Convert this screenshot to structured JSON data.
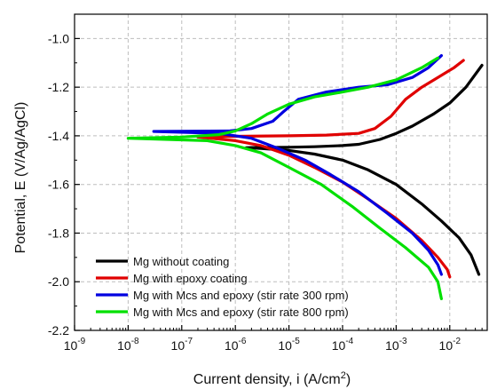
{
  "chart_data": {
    "type": "line",
    "title": "",
    "xlabel": "Current density, i (A/cm",
    "xlabel_sup": "2",
    "xlabel_suffix": ")",
    "ylabel": "Potential, E (V/Ag/AgCl)",
    "xscale": "log",
    "xlim": [
      1e-09,
      0.05
    ],
    "ylim": [
      -2.2,
      -0.9
    ],
    "x_ticks": [
      {
        "value": 1e-09,
        "base": "10",
        "exp": "-9"
      },
      {
        "value": 1e-08,
        "base": "10",
        "exp": "-8"
      },
      {
        "value": 1e-07,
        "base": "10",
        "exp": "-7"
      },
      {
        "value": 1e-06,
        "base": "10",
        "exp": "-6"
      },
      {
        "value": 1e-05,
        "base": "10",
        "exp": "-5"
      },
      {
        "value": 0.0001,
        "base": "10",
        "exp": "-4"
      },
      {
        "value": 0.001,
        "base": "10",
        "exp": "-3"
      },
      {
        "value": 0.01,
        "base": "10",
        "exp": "-2"
      }
    ],
    "y_ticks": [
      {
        "value": -1.0,
        "label": "-1.0"
      },
      {
        "value": -1.2,
        "label": "-1.2"
      },
      {
        "value": -1.4,
        "label": "-1.4"
      },
      {
        "value": -1.6,
        "label": "-1.6"
      },
      {
        "value": -1.8,
        "label": "-1.8"
      },
      {
        "value": -2.0,
        "label": "-2.0"
      },
      {
        "value": -2.2,
        "label": "-2.2"
      }
    ],
    "grid": true,
    "legend_position": "bottom-left",
    "series": [
      {
        "name": "Mg without coating",
        "color": "#000000",
        "points": [
          [
            0.04,
            -1.11
          ],
          [
            0.02,
            -1.2
          ],
          [
            0.01,
            -1.265
          ],
          [
            0.005,
            -1.31
          ],
          [
            0.002,
            -1.36
          ],
          [
            0.001,
            -1.39
          ],
          [
            0.0005,
            -1.415
          ],
          [
            0.0002,
            -1.435
          ],
          [
            0.0001,
            -1.44
          ],
          [
            3e-05,
            -1.445
          ],
          [
            1e-05,
            -1.447
          ],
          [
            2e-06,
            -1.448
          ],
          [
            1.6e-06,
            -1.449
          ],
          [
            3e-06,
            -1.452
          ],
          [
            1e-05,
            -1.46
          ],
          [
            3e-05,
            -1.475
          ],
          [
            0.0001,
            -1.5
          ],
          [
            0.0003,
            -1.54
          ],
          [
            0.001,
            -1.6
          ],
          [
            0.003,
            -1.68
          ],
          [
            0.007,
            -1.75
          ],
          [
            0.015,
            -1.82
          ],
          [
            0.025,
            -1.89
          ],
          [
            0.035,
            -1.97
          ]
        ]
      },
      {
        "name": "Mg with epoxy coating",
        "color": "#e00000",
        "points": [
          [
            0.018,
            -1.09
          ],
          [
            0.012,
            -1.12
          ],
          [
            0.006,
            -1.16
          ],
          [
            0.003,
            -1.2
          ],
          [
            0.0015,
            -1.25
          ],
          [
            0.0008,
            -1.32
          ],
          [
            0.0004,
            -1.37
          ],
          [
            0.0002,
            -1.39
          ],
          [
            5e-05,
            -1.397
          ],
          [
            1e-05,
            -1.4
          ],
          [
            1e-06,
            -1.402
          ],
          [
            2e-07,
            -1.405
          ],
          [
            1e-06,
            -1.42
          ],
          [
            3e-06,
            -1.44
          ],
          [
            1e-05,
            -1.48
          ],
          [
            3e-05,
            -1.53
          ],
          [
            0.0001,
            -1.59
          ],
          [
            0.0003,
            -1.66
          ],
          [
            0.001,
            -1.74
          ],
          [
            0.003,
            -1.83
          ],
          [
            0.006,
            -1.9
          ],
          [
            0.009,
            -1.95
          ],
          [
            0.01,
            -1.98
          ]
        ]
      },
      {
        "name": "Mg with Mcs and epoxy (stir rate 300 rpm)",
        "color": "#0000e0",
        "points": [
          [
            0.007,
            -1.07
          ],
          [
            0.004,
            -1.12
          ],
          [
            0.002,
            -1.16
          ],
          [
            0.0007,
            -1.19
          ],
          [
            0.0002,
            -1.2
          ],
          [
            5e-05,
            -1.22
          ],
          [
            1.5e-05,
            -1.25
          ],
          [
            8e-06,
            -1.3
          ],
          [
            5e-06,
            -1.34
          ],
          [
            2e-06,
            -1.37
          ],
          [
            8e-07,
            -1.38
          ],
          [
            3e-08,
            -1.382
          ],
          [
            5e-07,
            -1.39
          ],
          [
            2e-06,
            -1.41
          ],
          [
            6e-06,
            -1.45
          ],
          [
            2e-05,
            -1.5
          ],
          [
            6e-05,
            -1.56
          ],
          [
            0.0002,
            -1.63
          ],
          [
            0.0007,
            -1.72
          ],
          [
            0.002,
            -1.8
          ],
          [
            0.004,
            -1.87
          ],
          [
            0.006,
            -1.93
          ],
          [
            0.007,
            -1.97
          ]
        ]
      },
      {
        "name": "Mg with Mcs and epoxy (stir rate 800 rpm)",
        "color": "#00e000",
        "points": [
          [
            0.006,
            -1.08
          ],
          [
            0.003,
            -1.12
          ],
          [
            0.001,
            -1.17
          ],
          [
            0.0003,
            -1.2
          ],
          [
            0.0001,
            -1.22
          ],
          [
            3e-05,
            -1.24
          ],
          [
            1e-05,
            -1.27
          ],
          [
            4e-06,
            -1.31
          ],
          [
            2e-06,
            -1.35
          ],
          [
            1e-06,
            -1.38
          ],
          [
            5e-07,
            -1.395
          ],
          [
            1e-07,
            -1.405
          ],
          [
            1e-08,
            -1.41
          ],
          [
            3e-07,
            -1.42
          ],
          [
            1e-06,
            -1.44
          ],
          [
            3e-06,
            -1.47
          ],
          [
            1e-05,
            -1.53
          ],
          [
            4e-05,
            -1.6
          ],
          [
            0.00015,
            -1.69
          ],
          [
            0.0005,
            -1.78
          ],
          [
            0.0015,
            -1.86
          ],
          [
            0.004,
            -1.94
          ],
          [
            0.006,
            -2.0
          ],
          [
            0.007,
            -2.07
          ]
        ]
      }
    ]
  }
}
